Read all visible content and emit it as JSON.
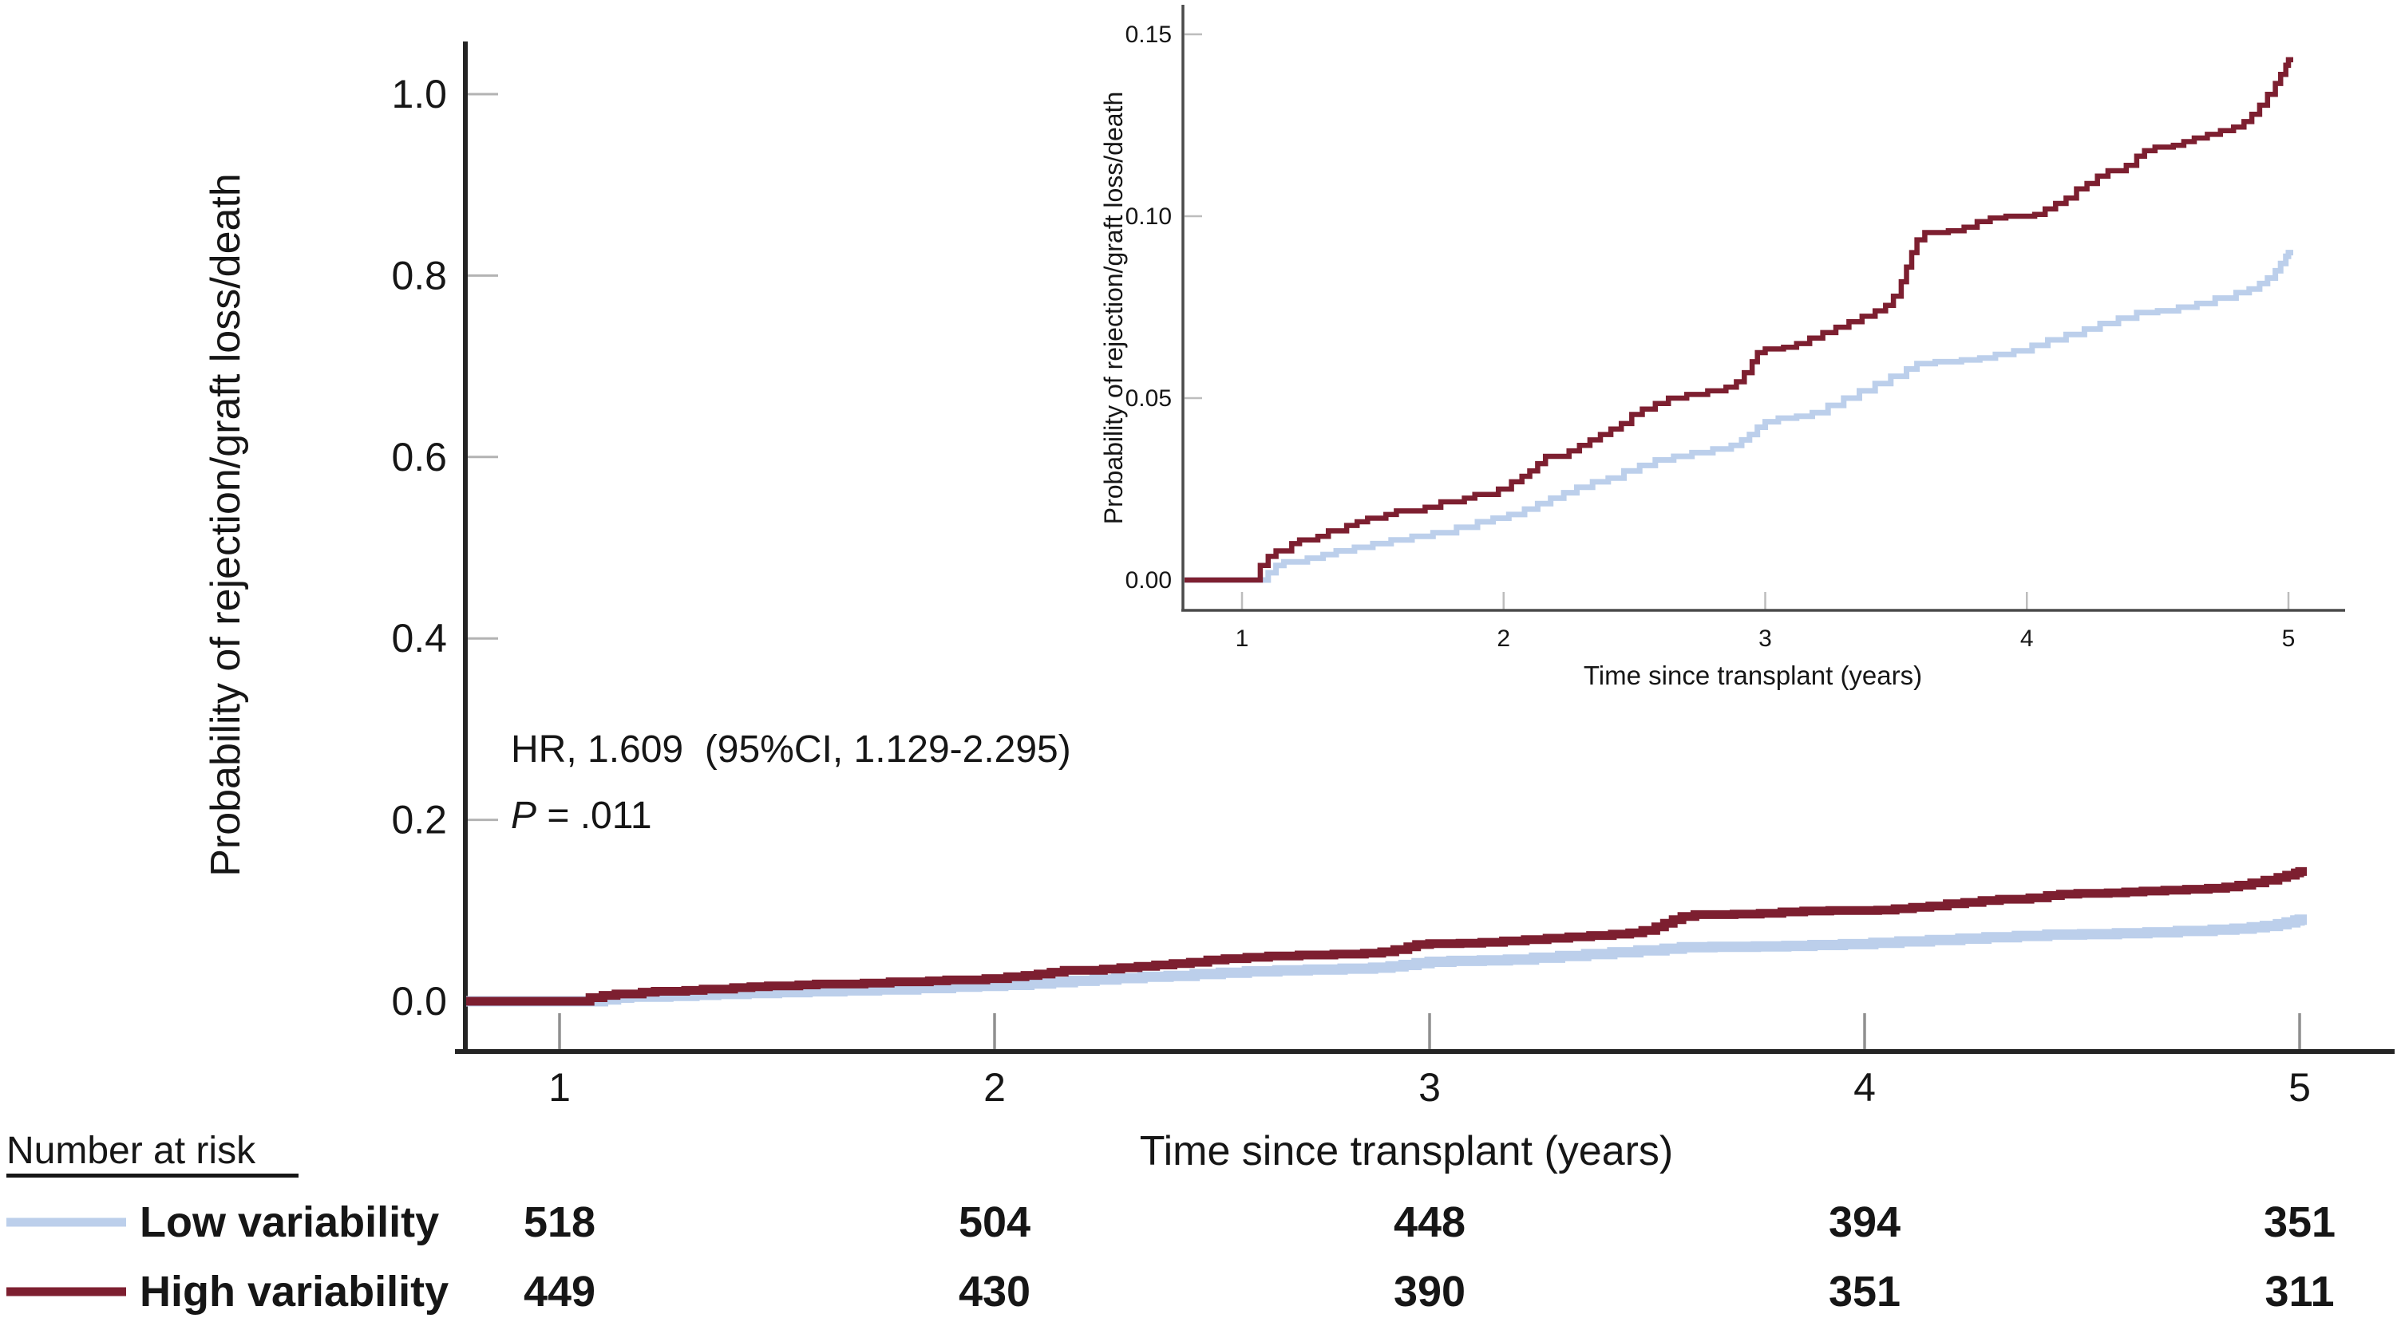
{
  "figure": {
    "kind": "kaplan-meier cumulative incidence figure with zoom inset"
  },
  "chart_data": {
    "type": "line",
    "subtype": "step-cumulative-incidence",
    "title": "",
    "xlabel": "Time since transplant (years)",
    "ylabel": "Probability of rejection/graft loss/death",
    "x_ticks": [
      1,
      2,
      3,
      4,
      5
    ],
    "main_axis": {
      "y_tick_values": [
        0.0,
        0.2,
        0.4,
        0.6,
        0.8,
        1.0
      ],
      "y_tick_labels": [
        "0.0",
        "0.2",
        "0.4",
        "0.6",
        "0.8",
        "1.0"
      ],
      "ylim": [
        -0.055,
        1.06
      ],
      "xlim": [
        0.78,
        5.22
      ],
      "grid": false
    },
    "inset_axis": {
      "y_tick_values": [
        0.0,
        0.05,
        0.1,
        0.15
      ],
      "y_tick_labels": [
        "0.00",
        "0.05",
        "0.10",
        "0.15"
      ],
      "ylim": [
        -0.008,
        0.158
      ],
      "xlim": [
        0.78,
        5.21
      ],
      "grid": false
    },
    "annotation": {
      "hr": "HR, 1.609  (95%CI, 1.129-2.295)",
      "p_label": "P",
      "p_rest": " = .011"
    },
    "legend_position": "bottom-left",
    "series": [
      {
        "name": "Low variability",
        "color": "#bccfeb",
        "points": [
          [
            0.78,
            0
          ],
          [
            1.07,
            0
          ],
          [
            1.1,
            0.002
          ],
          [
            1.13,
            0.004
          ],
          [
            1.16,
            0.005
          ],
          [
            1.25,
            0.006
          ],
          [
            1.31,
            0.007
          ],
          [
            1.36,
            0.008
          ],
          [
            1.43,
            0.009
          ],
          [
            1.5,
            0.01
          ],
          [
            1.57,
            0.011
          ],
          [
            1.65,
            0.012
          ],
          [
            1.73,
            0.013
          ],
          [
            1.82,
            0.0145
          ],
          [
            1.9,
            0.016
          ],
          [
            1.96,
            0.017
          ],
          [
            2.02,
            0.018
          ],
          [
            2.08,
            0.0195
          ],
          [
            2.13,
            0.021
          ],
          [
            2.18,
            0.0225
          ],
          [
            2.23,
            0.024
          ],
          [
            2.28,
            0.0255
          ],
          [
            2.34,
            0.027
          ],
          [
            2.4,
            0.028
          ],
          [
            2.46,
            0.03
          ],
          [
            2.52,
            0.0315
          ],
          [
            2.58,
            0.033
          ],
          [
            2.65,
            0.034
          ],
          [
            2.72,
            0.035
          ],
          [
            2.8,
            0.036
          ],
          [
            2.87,
            0.037
          ],
          [
            2.91,
            0.0385
          ],
          [
            2.94,
            0.04
          ],
          [
            2.97,
            0.042
          ],
          [
            3.0,
            0.0435
          ],
          [
            3.05,
            0.0445
          ],
          [
            3.12,
            0.045
          ],
          [
            3.18,
            0.046
          ],
          [
            3.24,
            0.048
          ],
          [
            3.3,
            0.05
          ],
          [
            3.36,
            0.052
          ],
          [
            3.42,
            0.054
          ],
          [
            3.48,
            0.056
          ],
          [
            3.54,
            0.058
          ],
          [
            3.58,
            0.0595
          ],
          [
            3.65,
            0.06
          ],
          [
            3.75,
            0.0605
          ],
          [
            3.82,
            0.061
          ],
          [
            3.88,
            0.062
          ],
          [
            3.95,
            0.063
          ],
          [
            4.02,
            0.0645
          ],
          [
            4.08,
            0.066
          ],
          [
            4.15,
            0.0675
          ],
          [
            4.22,
            0.069
          ],
          [
            4.28,
            0.0705
          ],
          [
            4.35,
            0.072
          ],
          [
            4.42,
            0.0735
          ],
          [
            4.5,
            0.074
          ],
          [
            4.58,
            0.075
          ],
          [
            4.65,
            0.076
          ],
          [
            4.72,
            0.0775
          ],
          [
            4.8,
            0.079
          ],
          [
            4.85,
            0.08
          ],
          [
            4.89,
            0.0815
          ],
          [
            4.92,
            0.083
          ],
          [
            4.95,
            0.085
          ],
          [
            4.97,
            0.087
          ],
          [
            4.99,
            0.089
          ],
          [
            5.0,
            0.09
          ]
        ]
      },
      {
        "name": "High variability",
        "color": "#7d1f30",
        "points": [
          [
            0.78,
            0
          ],
          [
            1.05,
            0
          ],
          [
            1.07,
            0.004
          ],
          [
            1.1,
            0.0065
          ],
          [
            1.13,
            0.008
          ],
          [
            1.19,
            0.01
          ],
          [
            1.22,
            0.011
          ],
          [
            1.29,
            0.012
          ],
          [
            1.33,
            0.0135
          ],
          [
            1.4,
            0.015
          ],
          [
            1.44,
            0.016
          ],
          [
            1.48,
            0.017
          ],
          [
            1.55,
            0.018
          ],
          [
            1.59,
            0.019
          ],
          [
            1.7,
            0.02
          ],
          [
            1.76,
            0.0215
          ],
          [
            1.85,
            0.0225
          ],
          [
            1.89,
            0.0235
          ],
          [
            1.98,
            0.025
          ],
          [
            2.03,
            0.027
          ],
          [
            2.07,
            0.0285
          ],
          [
            2.1,
            0.03
          ],
          [
            2.13,
            0.032
          ],
          [
            2.16,
            0.034
          ],
          [
            2.25,
            0.0355
          ],
          [
            2.29,
            0.037
          ],
          [
            2.33,
            0.0385
          ],
          [
            2.37,
            0.04
          ],
          [
            2.41,
            0.0415
          ],
          [
            2.45,
            0.043
          ],
          [
            2.49,
            0.0455
          ],
          [
            2.53,
            0.047
          ],
          [
            2.58,
            0.0485
          ],
          [
            2.63,
            0.05
          ],
          [
            2.7,
            0.051
          ],
          [
            2.78,
            0.052
          ],
          [
            2.85,
            0.053
          ],
          [
            2.89,
            0.0545
          ],
          [
            2.92,
            0.057
          ],
          [
            2.95,
            0.06
          ],
          [
            2.97,
            0.0625
          ],
          [
            3.0,
            0.0635
          ],
          [
            3.07,
            0.064
          ],
          [
            3.12,
            0.065
          ],
          [
            3.17,
            0.0665
          ],
          [
            3.22,
            0.068
          ],
          [
            3.27,
            0.0695
          ],
          [
            3.32,
            0.071
          ],
          [
            3.37,
            0.0725
          ],
          [
            3.42,
            0.074
          ],
          [
            3.46,
            0.0755
          ],
          [
            3.49,
            0.078
          ],
          [
            3.52,
            0.082
          ],
          [
            3.54,
            0.086
          ],
          [
            3.56,
            0.09
          ],
          [
            3.58,
            0.0935
          ],
          [
            3.61,
            0.0955
          ],
          [
            3.7,
            0.096
          ],
          [
            3.76,
            0.097
          ],
          [
            3.81,
            0.0985
          ],
          [
            3.86,
            0.0995
          ],
          [
            3.92,
            0.1
          ],
          [
            4.03,
            0.1005
          ],
          [
            4.07,
            0.102
          ],
          [
            4.11,
            0.1035
          ],
          [
            4.15,
            0.105
          ],
          [
            4.19,
            0.1075
          ],
          [
            4.23,
            0.109
          ],
          [
            4.27,
            0.111
          ],
          [
            4.31,
            0.1125
          ],
          [
            4.38,
            0.114
          ],
          [
            4.42,
            0.1165
          ],
          [
            4.45,
            0.118
          ],
          [
            4.49,
            0.119
          ],
          [
            4.56,
            0.1195
          ],
          [
            4.6,
            0.1205
          ],
          [
            4.64,
            0.1215
          ],
          [
            4.69,
            0.1225
          ],
          [
            4.74,
            0.1235
          ],
          [
            4.79,
            0.1245
          ],
          [
            4.83,
            0.126
          ],
          [
            4.86,
            0.128
          ],
          [
            4.89,
            0.1305
          ],
          [
            4.92,
            0.1335
          ],
          [
            4.95,
            0.1365
          ],
          [
            4.97,
            0.139
          ],
          [
            4.99,
            0.1415
          ],
          [
            5.0,
            0.143
          ]
        ]
      }
    ]
  },
  "risk_table": {
    "header": "Number at risk",
    "time_points": [
      1,
      2,
      3,
      4,
      5
    ],
    "rows": [
      {
        "label": "Low variability",
        "line_color": "#bccfeb",
        "text_color": "#b7cbec",
        "values": [
          "518",
          "504",
          "448",
          "394",
          "351"
        ]
      },
      {
        "label": "High variability",
        "line_color": "#7d1f30",
        "text_color": "#8a2134",
        "values": [
          "449",
          "430",
          "390",
          "351",
          "311"
        ]
      }
    ]
  },
  "colors": {
    "background": "#ffffff",
    "main_axis": "#242424",
    "inset_axis": "#4a4a4a",
    "main_y_tick": "#b3b3b3",
    "main_x_tick": "#8f8f8f",
    "inset_tick": "#bdbdbd",
    "text": "#161616",
    "low_series": "#bccfeb",
    "high_series": "#7d1f30"
  }
}
